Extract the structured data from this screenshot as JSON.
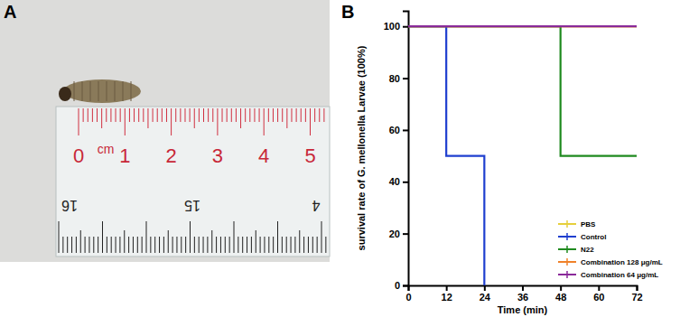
{
  "panels": {
    "a": "A",
    "b": "B"
  },
  "photo": {
    "ruler_top": [
      "0",
      "cm",
      "1",
      "2",
      "3",
      "4",
      "5"
    ],
    "ruler_bottom": [
      "16",
      "15",
      "4"
    ]
  },
  "chart_data": {
    "type": "line",
    "line_style": "step",
    "x_label": "Time (min)",
    "y_label": "survival rate of G. mellonella Larvae (100%)",
    "x": [
      0,
      12,
      24,
      36,
      48,
      60,
      72
    ],
    "xlim": [
      0,
      72
    ],
    "xticks": [
      0,
      12,
      24,
      36,
      48,
      60,
      72
    ],
    "ylim": [
      0,
      106
    ],
    "yticks": [
      0,
      20,
      40,
      60,
      80,
      100
    ],
    "legend": "lower right",
    "series": [
      {
        "name": "PBS",
        "color": "#e6cf3c",
        "values": [
          100,
          100,
          100,
          100,
          100,
          100,
          100
        ]
      },
      {
        "name": "Control",
        "color": "#1f3fcf",
        "values": [
          100,
          50,
          0,
          null,
          null,
          null,
          null
        ]
      },
      {
        "name": "N22",
        "color": "#1f8a1f",
        "values": [
          100,
          100,
          100,
          100,
          50,
          50,
          50
        ]
      },
      {
        "name": "Combination 128 μg/mL",
        "color": "#f0822a",
        "values": [
          100,
          100,
          100,
          100,
          100,
          100,
          100
        ]
      },
      {
        "name": "Combination 64 μg/mL",
        "color": "#8a2a9a",
        "values": [
          100,
          100,
          100,
          100,
          100,
          100,
          100
        ]
      }
    ]
  }
}
